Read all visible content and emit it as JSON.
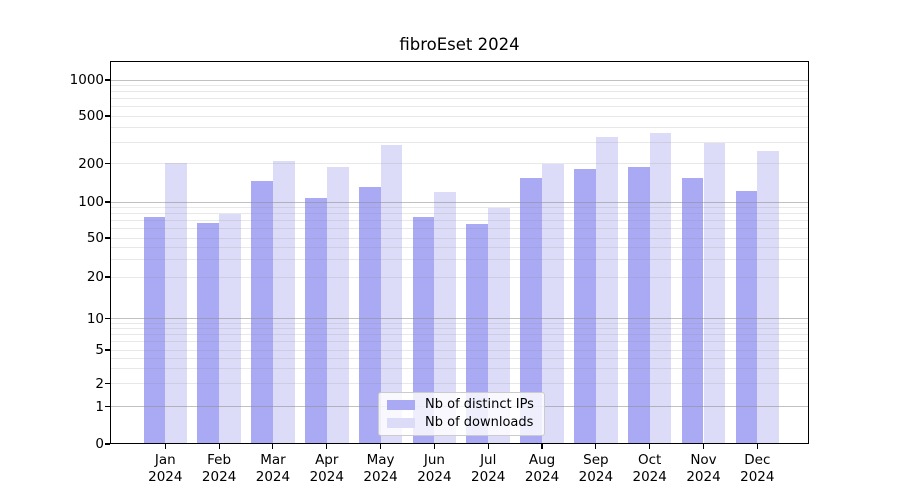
{
  "title": "fibroEset 2024",
  "legend": {
    "items": [
      {
        "label": "Nb of distinct IPs",
        "color": "#a9a9f4"
      },
      {
        "label": "Nb of downloads",
        "color": "#dcdcf8"
      }
    ]
  },
  "colors": {
    "ips_bar": "#a9a9f4",
    "downloads_bar": "#dcdcf8",
    "grid_major": "rgba(142,142,142,0.55)",
    "grid_minor": "rgba(142,142,142,0.20)",
    "axis": "#000000"
  },
  "chart_data": {
    "type": "bar",
    "title": "fibroEset 2024",
    "xlabel": "",
    "ylabel": "",
    "categories": [
      "Jan 2024",
      "Feb 2024",
      "Mar 2024",
      "Apr 2024",
      "May 2024",
      "Jun 2024",
      "Jul 2024",
      "Aug 2024",
      "Sep 2024",
      "Oct 2024",
      "Nov 2024",
      "Dec 2024"
    ],
    "series": [
      {
        "name": "Nb of distinct IPs",
        "color": "#a9a9f4",
        "values": [
          75,
          67,
          146,
          108,
          132,
          75,
          66,
          154,
          180,
          189,
          155,
          121
        ]
      },
      {
        "name": "Nb of downloads",
        "color": "#dcdcf8",
        "values": [
          201,
          79,
          209,
          188,
          285,
          119,
          89,
          200,
          335,
          362,
          295,
          255
        ]
      }
    ],
    "yticks": [
      0,
      1,
      2,
      5,
      10,
      20,
      50,
      100,
      200,
      500,
      1000
    ],
    "ylim": [
      0,
      1400
    ],
    "yscale": "log-like (linear 0-1, logarithmic above)",
    "grid": "horizontal, major lines at 1/10/100/1000, minor at in-between log steps, drawn over bars",
    "legend_position": "lower center inside plot"
  }
}
